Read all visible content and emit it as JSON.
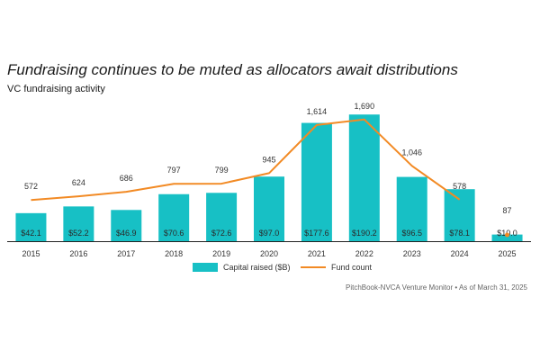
{
  "title": "Fundraising continues to be muted as allocators await distributions",
  "subtitle": "VC fundraising activity",
  "source": "PitchBook-NVCA Venture Monitor • As of March 31, 2025",
  "colors": {
    "bar": "#17c0c5",
    "line": "#f28a24",
    "axis": "#222222",
    "text": "#333333",
    "bar_label": "#2a2a2a"
  },
  "chart_data": {
    "type": "bar",
    "categories": [
      "2015",
      "2016",
      "2017",
      "2018",
      "2019",
      "2020",
      "2021",
      "2022",
      "2023",
      "2024",
      "2025"
    ],
    "series": [
      {
        "name": "Capital raised ($B)",
        "type": "bar",
        "values": [
          42.1,
          52.2,
          46.9,
          70.6,
          72.6,
          97.0,
          177.6,
          190.2,
          96.5,
          78.1,
          10.0
        ],
        "labels": [
          "$42.1",
          "$52.2",
          "$46.9",
          "$70.6",
          "$72.6",
          "$97.0",
          "$177.6",
          "$190.2",
          "$96.5",
          "$78.1",
          "$10.0"
        ]
      },
      {
        "name": "Fund count",
        "type": "line",
        "values": [
          572,
          624,
          686,
          797,
          799,
          945,
          1614,
          1690,
          1046,
          578,
          87
        ],
        "labels": [
          "572",
          "624",
          "686",
          "797",
          "799",
          "945",
          "1,614",
          "1,690",
          "1,046",
          "578",
          "87"
        ],
        "line_through_index": 9
      }
    ],
    "bar_ylim": [
      0,
      200
    ],
    "line_ylim": [
      0,
      1850
    ],
    "legend": [
      "Capital raised ($B)",
      "Fund count"
    ],
    "legend_position": "bottom-center"
  }
}
